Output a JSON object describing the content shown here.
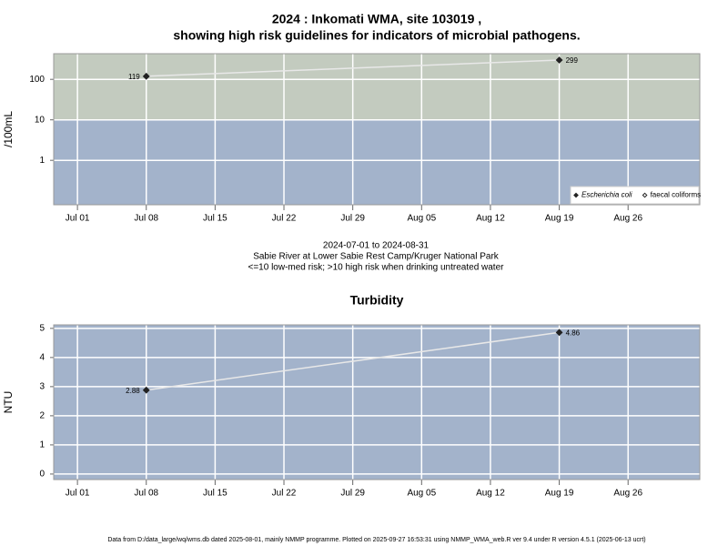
{
  "chart_data": [
    {
      "type": "line",
      "title": [
        "2024 : Inkomati WMA, site 103019 ,",
        "showing high risk guidelines for indicators of microbial pathogens."
      ],
      "notes": [
        "2024-07-01 to 2024-08-31",
        "Sabie River at Lower Sabie Rest Camp/Kruger National Park",
        "<=10 low-med risk; >10 high risk when drinking untreated water"
      ],
      "ylabel": "/100mL",
      "log_y": true,
      "x": [
        "2024-07-08",
        "2024-08-19"
      ],
      "series": [
        {
          "name": "Escherichia coli",
          "color": "#222222",
          "marker": "filled-diamond",
          "values": [
            119,
            299
          ]
        },
        {
          "name": "faecal coliforms",
          "color": "#222222",
          "marker": "open-diamond",
          "values": [
            null,
            null
          ]
        }
      ],
      "line_color": "#e8e8e8",
      "background": "#a3b3cb",
      "bands": [
        {
          "from": 10,
          "color": "#c3cbbf"
        }
      ],
      "xlim": [
        "2024-06-28T14:00Z",
        "2024-09-02T07:00Z"
      ],
      "xticks": [
        {
          "value": "2024-07-01",
          "label": "Jul 01"
        },
        {
          "value": "2024-07-08",
          "label": "Jul 08"
        },
        {
          "value": "2024-07-15",
          "label": "Jul 15"
        },
        {
          "value": "2024-07-22",
          "label": "Jul 22"
        },
        {
          "value": "2024-07-29",
          "label": "Jul 29"
        },
        {
          "value": "2024-08-05",
          "label": "Aug 05"
        },
        {
          "value": "2024-08-12",
          "label": "Aug 12"
        },
        {
          "value": "2024-08-19",
          "label": "Aug 19"
        },
        {
          "value": "2024-08-26",
          "label": "Aug 26"
        }
      ],
      "ylim": [
        0.08,
        430
      ],
      "yticks": [
        1,
        10,
        100
      ],
      "grid": true,
      "legend": "bottom-right"
    },
    {
      "type": "line",
      "title": [
        "Turbidity"
      ],
      "ylabel": "NTU",
      "log_y": false,
      "x": [
        "2024-07-08",
        "2024-08-19"
      ],
      "series": [
        {
          "name": "Turbidity",
          "color": "#222222",
          "marker": "filled-diamond",
          "values": [
            2.88,
            4.86
          ]
        }
      ],
      "line_color": "#e8e8e8",
      "background": "#a3b3cb",
      "xlim": [
        "2024-06-28T14:00Z",
        "2024-09-02T07:00Z"
      ],
      "xticks": [
        {
          "value": "2024-07-01",
          "label": "Jul 01"
        },
        {
          "value": "2024-07-08",
          "label": "Jul 08"
        },
        {
          "value": "2024-07-15",
          "label": "Jul 15"
        },
        {
          "value": "2024-07-22",
          "label": "Jul 22"
        },
        {
          "value": "2024-07-29",
          "label": "Jul 29"
        },
        {
          "value": "2024-08-05",
          "label": "Aug 05"
        },
        {
          "value": "2024-08-12",
          "label": "Aug 12"
        },
        {
          "value": "2024-08-19",
          "label": "Aug 19"
        },
        {
          "value": "2024-08-26",
          "label": "Aug 26"
        }
      ],
      "ylim": [
        -0.19,
        5.12
      ],
      "yticks": [
        0,
        1,
        2,
        3,
        4,
        5
      ],
      "grid": true
    }
  ],
  "footer": "Data from D:/data_large/wq/wms.db dated 2025-08-01, mainly NMMP programme. Plotted on 2025-09-27 16:53:31 using NMMP_WMA_web.R ver 9.4 under R version 4.5.1 (2025-06-13 ucrt)"
}
